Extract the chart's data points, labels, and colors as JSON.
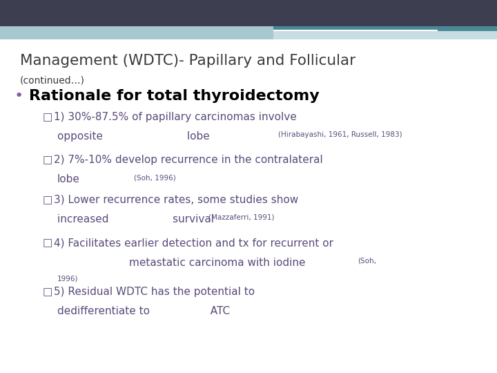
{
  "bg_color": "#ffffff",
  "header_dark_color": "#3d3f50",
  "header_teal_color": "#4a8a96",
  "header_light_color": "#a8c8d0",
  "header_lighter_color": "#c8dde2",
  "title": "Management (WDTC)- Papillary and Follicular",
  "subtitle": "(continued…)",
  "bullet_char": "•",
  "bullet_text": "Rationale for total thyroidectomy",
  "title_color": "#3a3a3a",
  "subtitle_color": "#3a3a3a",
  "bullet_dot_color": "#8060a0",
  "bullet_text_color": "#000000",
  "item_color": "#5a4a7a",
  "cite_color": "#5a4a7a"
}
